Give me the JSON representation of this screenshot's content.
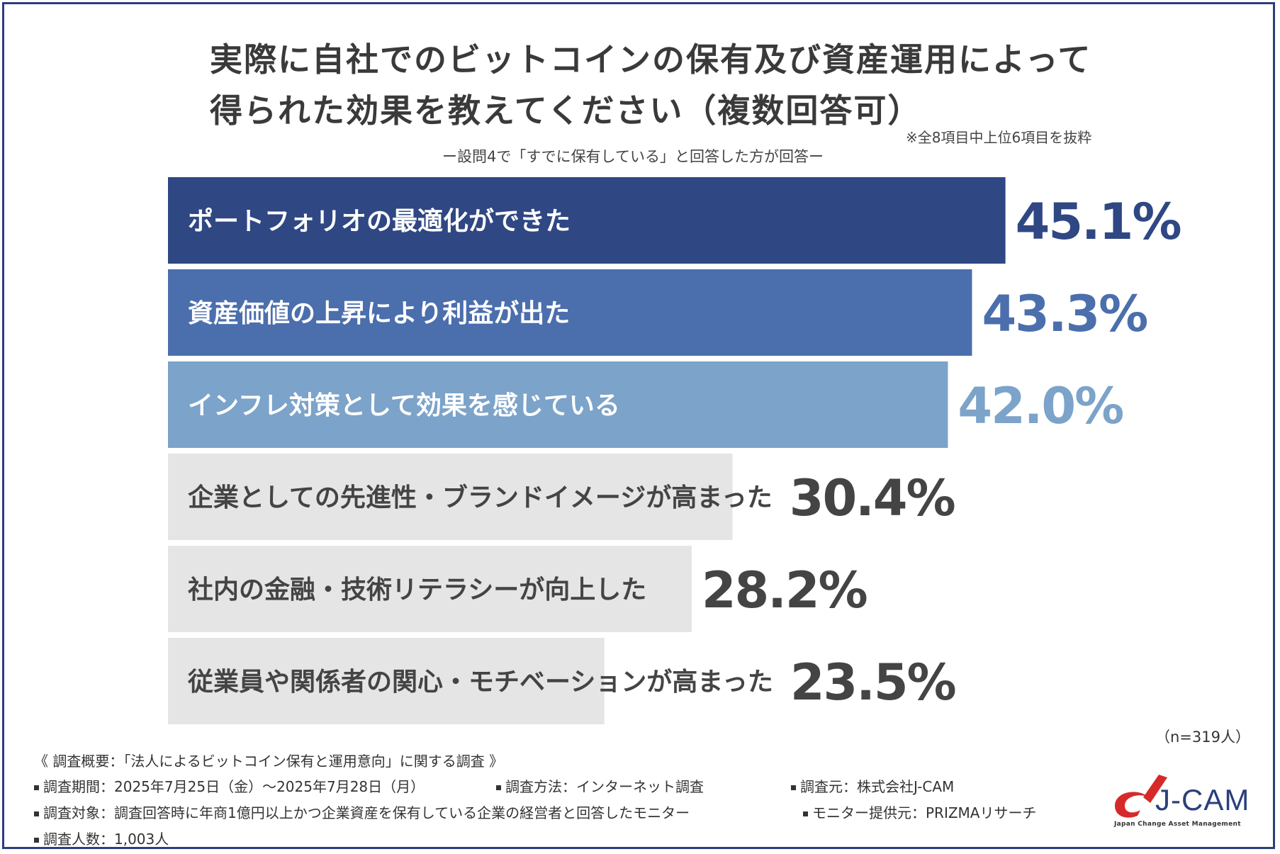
{
  "title_line1": "実際に自社でのビットコインの保有及び資産運用によって",
  "title_line2": "得られた効果を教えてください（複数回答可）",
  "note": "※全8項目中上位6項目を抜粋",
  "subquestion": "ー設問4で「すでに保有している」と回答した方が回答ー",
  "n_label": "（n=319人）",
  "chart_data": {
    "type": "bar",
    "orientation": "horizontal",
    "categories": [
      "ポートフォリオの最適化ができた",
      "資産価値の上昇により利益が出た",
      "インフレ対策として効果を感じている",
      "企業としての先進性・ブランドイメージが高まった",
      "社内の金融・技術リテラシーが向上した",
      "従業員や関係者の関心・モチベーションが高まった"
    ],
    "values": [
      45.1,
      43.3,
      42.0,
      30.4,
      28.2,
      23.5
    ],
    "value_labels": [
      "45.1%",
      "43.3%",
      "42.0%",
      "30.4%",
      "28.2%",
      "23.5%"
    ],
    "bar_colors": [
      "#2f4783",
      "#4b6ead",
      "#7ca3c9",
      "#e5e5e5",
      "#e5e5e5",
      "#e5e5e5"
    ],
    "value_colors": [
      "#2f4783",
      "#4b6ead",
      "#7ca3c9",
      "#444444",
      "#444444",
      "#444444"
    ],
    "label_colors": [
      "#ffffff",
      "#ffffff",
      "#ffffff",
      "#444444",
      "#444444",
      "#444444"
    ],
    "grid": false
  },
  "survey": {
    "heading": "《 調査概要：「法人によるビットコイン保有と運用意向」に関する調査 》",
    "period": "調査期間：2025年7月25日（金）〜2025年7月28日（月）",
    "method": "調査方法：インターネット調査",
    "source": "調査元：株式会社J-CAM",
    "target": "調査対象：調査回答時に年商1億円以上かつ企業資産を保有している企業の経営者と回答したモニター",
    "provider": "モニター提供元：PRIZMAリサーチ",
    "count": "調査人数：1,003人"
  },
  "logo": {
    "text": "J-CAM",
    "subtitle": "Japan Change Asset Management",
    "accent_color": "#d62a2a"
  }
}
